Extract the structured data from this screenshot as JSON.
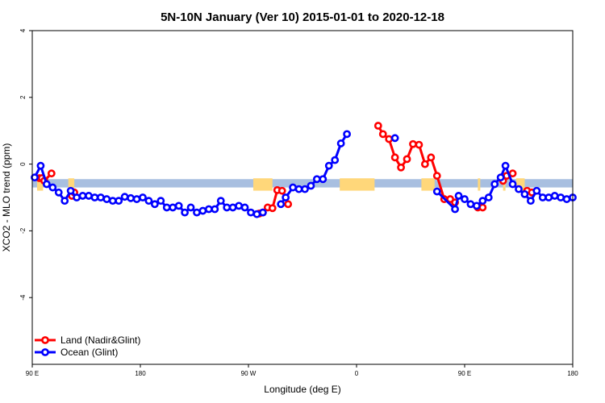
{
  "chart_data": {
    "type": "line",
    "title": "5N-10N January (Ver 10)   2015-01-01 to 2020-12-18",
    "xlabel": "Longitude (deg E)",
    "ylabel": "XCO2 - MLO trend (ppm)",
    "xlim": [
      90,
      540
    ],
    "ylim": [
      -6,
      4
    ],
    "x_ticks": [
      90,
      180,
      270,
      360,
      450,
      540
    ],
    "x_tick_labels": [
      "90 E",
      "180",
      "90 W",
      "0",
      "90 E",
      "180"
    ],
    "y_ticks": [
      -4,
      -2,
      0,
      2,
      4
    ],
    "y_tick_labels": [
      "-4",
      "-2",
      "0",
      "2",
      "4"
    ],
    "band": {
      "ymin": -0.7,
      "ymax": -0.45,
      "color": "#a8bfe0",
      "land_color": "#ffd77a"
    },
    "land_segments": [
      [
        94,
        99
      ],
      [
        120,
        125
      ],
      [
        274,
        290
      ],
      [
        346,
        375
      ],
      [
        414,
        425
      ],
      [
        461,
        463
      ],
      [
        482,
        484
      ],
      [
        493,
        500
      ]
    ],
    "legend": {
      "position": "bottom-left"
    },
    "series": [
      {
        "name": "Land (Nadir&Glint)",
        "color": "#ff0000",
        "segments": [
          {
            "x": [
              96,
              98,
              100,
              106
            ],
            "y": [
              -0.42,
              -0.42,
              -0.5,
              -0.28
            ]
          },
          {
            "x": [
              123,
              125
            ],
            "y": [
              -0.95,
              -0.85
            ]
          },
          {
            "x": [
              279,
              282,
              286,
              290,
              294,
              298,
              303
            ],
            "y": [
              -1.48,
              -1.45,
              -1.3,
              -1.32,
              -0.78,
              -0.8,
              -1.2
            ]
          },
          {
            "x": [
              378,
              382,
              387,
              392,
              397,
              402,
              407,
              412,
              417,
              422,
              427,
              433,
              438,
              442
            ],
            "y": [
              1.15,
              0.9,
              0.75,
              0.2,
              -0.1,
              0.15,
              0.6,
              0.58,
              0.0,
              0.2,
              -0.35,
              -1.05,
              -1.05,
              -1.15
            ]
          },
          {
            "x": [
              461,
              465
            ],
            "y": [
              -1.3,
              -1.3
            ]
          },
          {
            "x": [
              482,
              485,
              490
            ],
            "y": [
              -0.5,
              -0.35,
              -0.28
            ]
          },
          {
            "x": [
              502,
              506
            ],
            "y": [
              -0.8,
              -0.85
            ]
          }
        ]
      },
      {
        "name": "Ocean (Glint)",
        "color": "#0000ff",
        "segments": [
          {
            "x": [
              92,
              97,
              102,
              107,
              112,
              117,
              122,
              127,
              132,
              137,
              142,
              147,
              152,
              157,
              162,
              167,
              172,
              177,
              182,
              187,
              192,
              197,
              202,
              207,
              212,
              217,
              222,
              227,
              232,
              237,
              242,
              247,
              252,
              257,
              262,
              267,
              272,
              277,
              282
            ],
            "y": [
              -0.4,
              -0.05,
              -0.6,
              -0.7,
              -0.85,
              -1.1,
              -0.8,
              -1.0,
              -0.95,
              -0.95,
              -1.0,
              -1.0,
              -1.05,
              -1.1,
              -1.1,
              -0.98,
              -1.02,
              -1.05,
              -1.0,
              -1.1,
              -1.2,
              -1.1,
              -1.3,
              -1.3,
              -1.25,
              -1.45,
              -1.3,
              -1.45,
              -1.4,
              -1.35,
              -1.35,
              -1.1,
              -1.3,
              -1.3,
              -1.25,
              -1.3,
              -1.45,
              -1.5,
              -1.45
            ]
          },
          {
            "x": [
              297,
              301,
              307,
              312,
              317,
              322,
              327,
              332,
              337,
              342,
              347,
              352
            ],
            "y": [
              -1.2,
              -1.0,
              -0.7,
              -0.75,
              -0.75,
              -0.65,
              -0.45,
              -0.45,
              -0.05,
              0.12,
              0.62,
              0.9
            ]
          },
          {
            "x": [
              392
            ],
            "y": [
              0.78
            ]
          },
          {
            "x": [
              427,
              442,
              445,
              450,
              455,
              460,
              465,
              470,
              475,
              480,
              484,
              490,
              495,
              500,
              505,
              510,
              515,
              520,
              525,
              530,
              535,
              540
            ],
            "y": [
              -0.82,
              -1.35,
              -0.95,
              -1.05,
              -1.2,
              -1.25,
              -1.1,
              -1.0,
              -0.6,
              -0.4,
              -0.05,
              -0.6,
              -0.75,
              -0.9,
              -1.1,
              -0.8,
              -1.0,
              -1.0,
              -0.95,
              -1.0,
              -1.05,
              -1.0
            ]
          }
        ]
      }
    ]
  }
}
